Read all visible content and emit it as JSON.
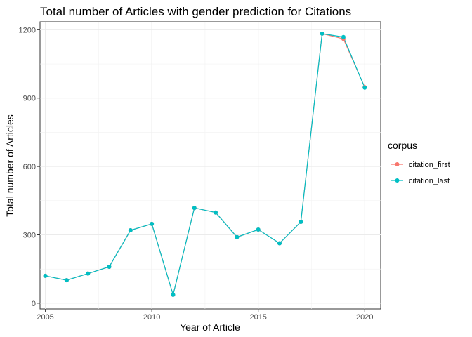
{
  "chart_data": {
    "type": "line",
    "title": "Total number of Articles with gender prediction for Citations",
    "xlabel": "Year of Article",
    "ylabel": "Total number of Articles",
    "x": [
      2005,
      2006,
      2007,
      2008,
      2009,
      2010,
      2011,
      2012,
      2013,
      2014,
      2015,
      2016,
      2017,
      2018,
      2019,
      2020
    ],
    "xlim": [
      2004.75,
      2020.75
    ],
    "ylim": [
      -25,
      1235
    ],
    "xticks": [
      2005,
      2010,
      2015,
      2020
    ],
    "yticks": [
      0,
      300,
      600,
      900,
      1200
    ],
    "xtick_labels": [
      "2005",
      "2010",
      "2015",
      "2020"
    ],
    "ytick_labels": [
      "0",
      "300",
      "600",
      "900",
      "1200"
    ],
    "grid": true,
    "legend": {
      "title": "corpus",
      "position": "right"
    },
    "series": [
      {
        "name": "citation_first",
        "color": "#F8766D",
        "values": [
          120,
          101,
          130,
          160,
          320,
          348,
          37,
          418,
          398,
          290,
          323,
          263,
          357,
          1183,
          1160,
          948
        ]
      },
      {
        "name": "citation_last",
        "color": "#00BFC4",
        "values": [
          120,
          101,
          130,
          160,
          320,
          348,
          37,
          418,
          398,
          290,
          323,
          263,
          357,
          1183,
          1168,
          946
        ]
      }
    ]
  }
}
